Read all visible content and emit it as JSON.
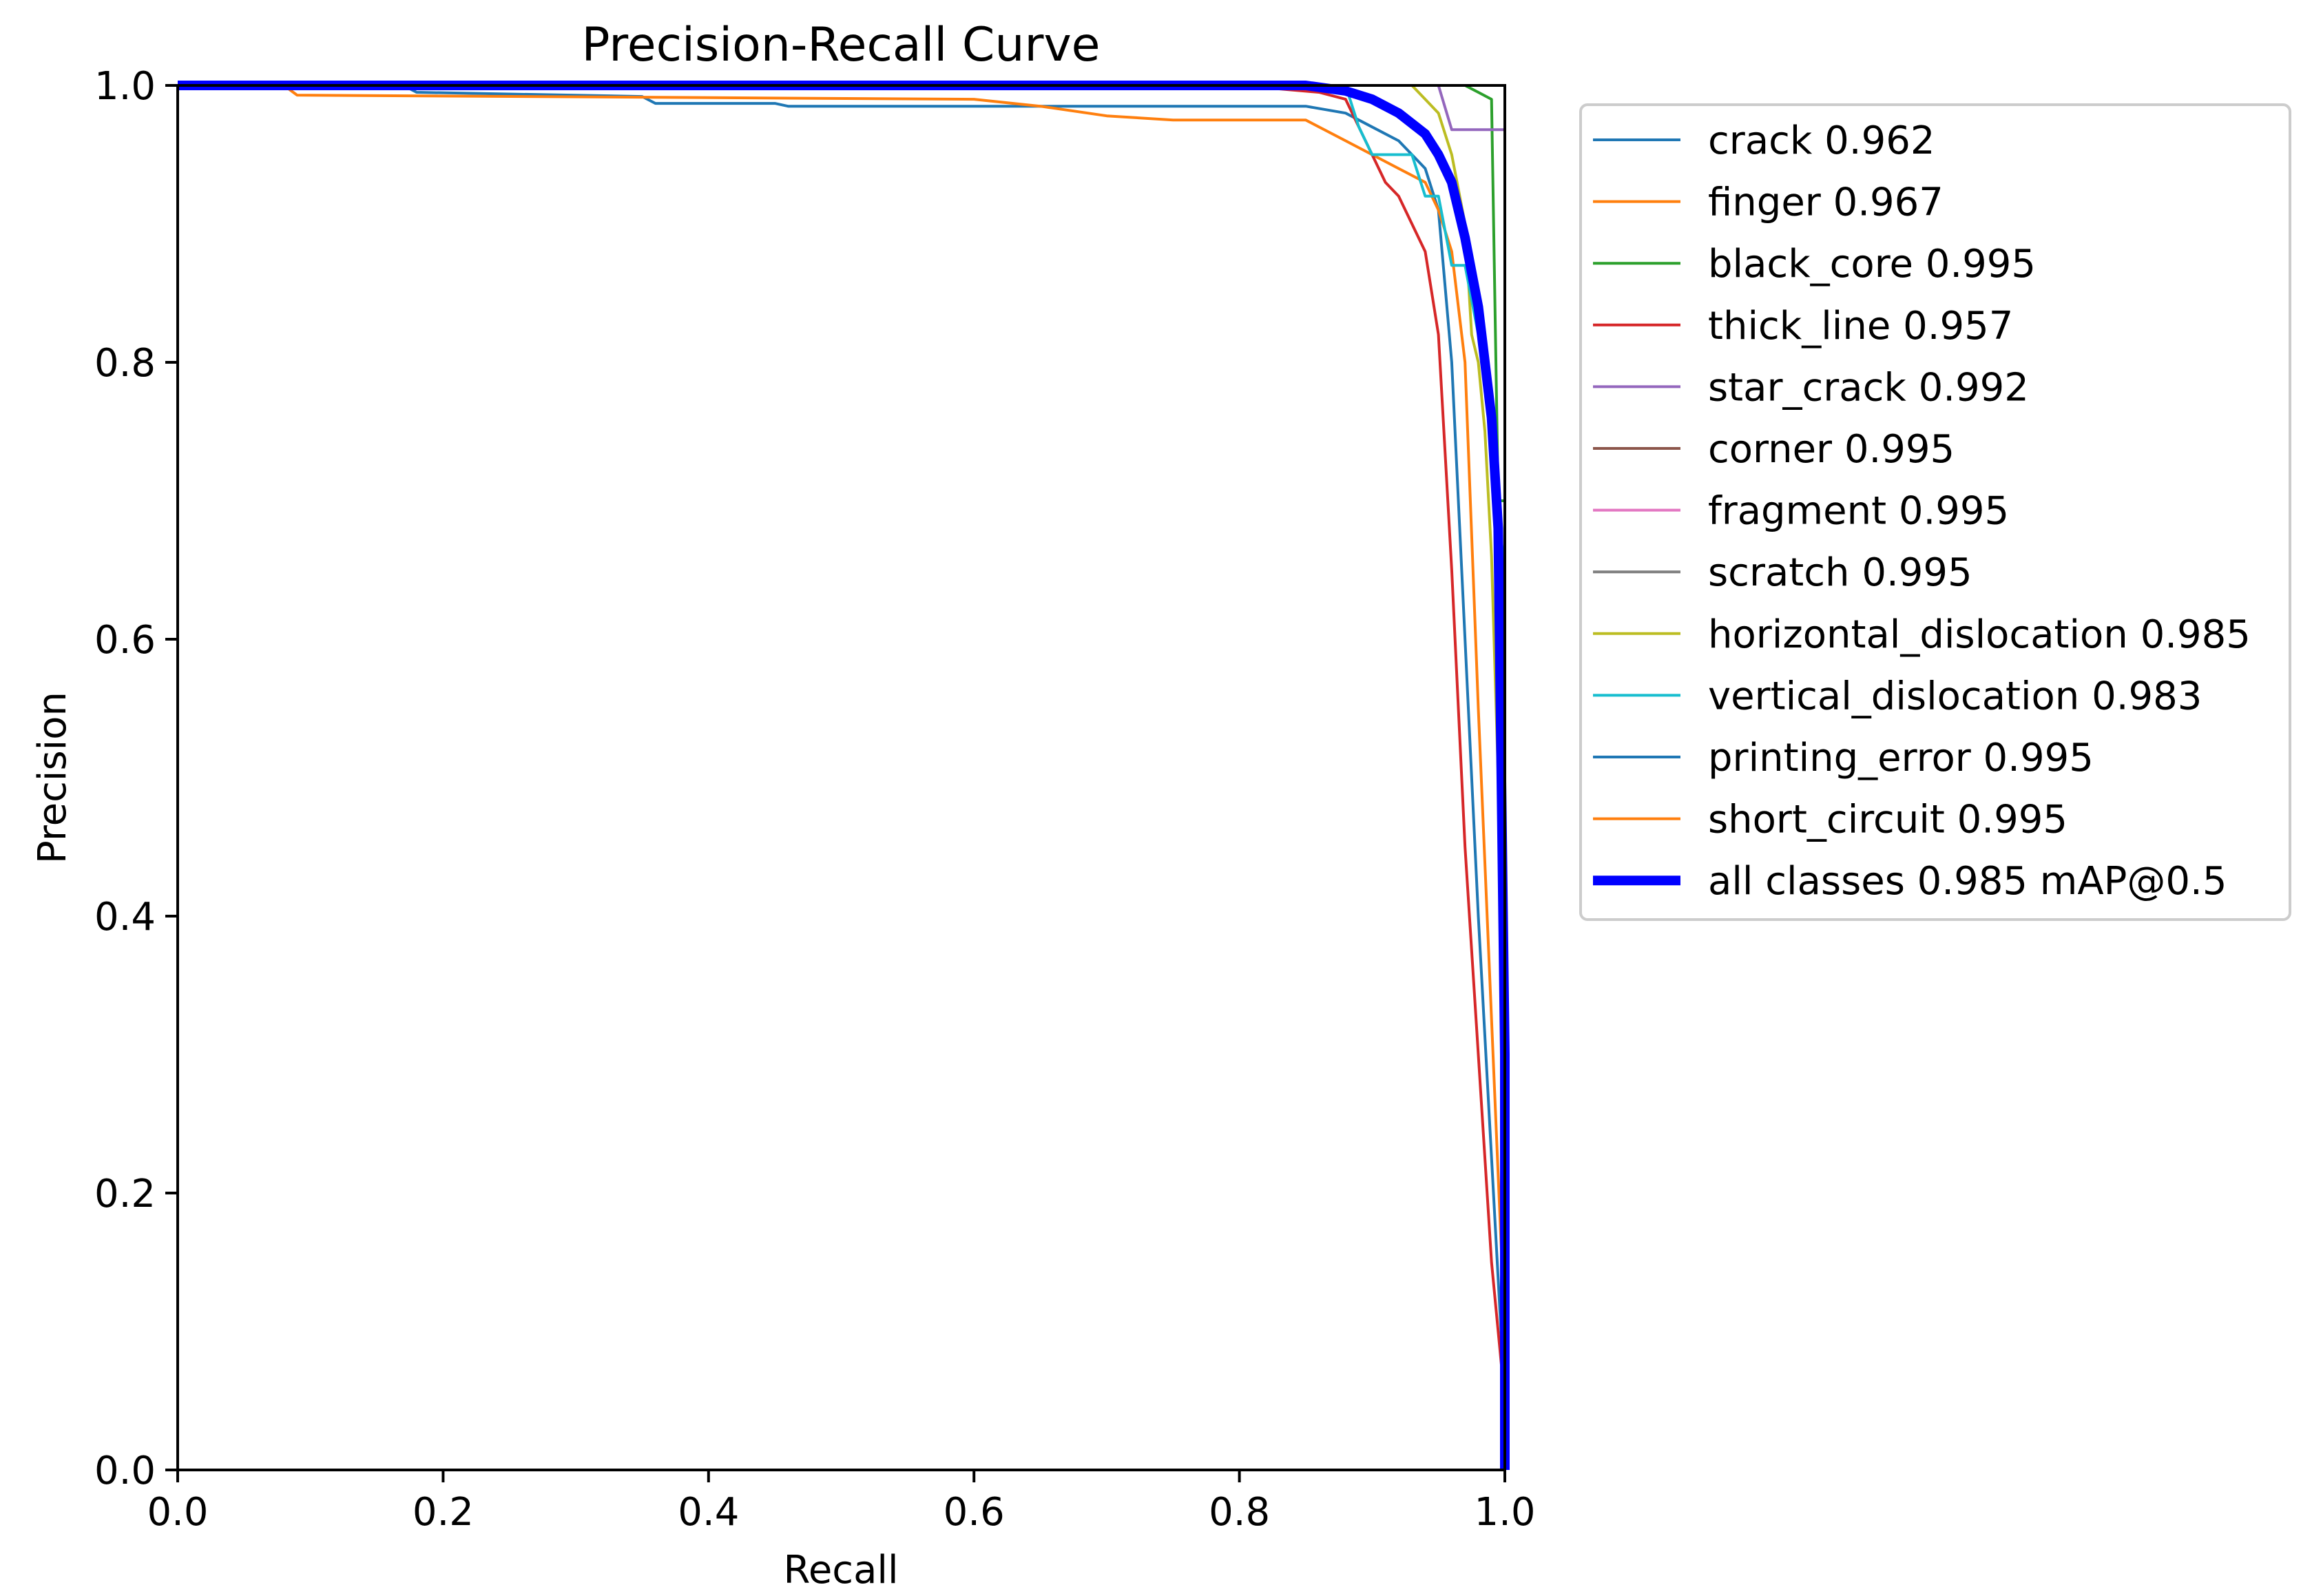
{
  "chart_data": {
    "type": "line",
    "title": "Precision-Recall Curve",
    "xlabel": "Recall",
    "ylabel": "Precision",
    "xlim": [
      0,
      1
    ],
    "ylim": [
      0,
      1
    ],
    "xticks": [
      0.0,
      0.2,
      0.4,
      0.6,
      0.8,
      1.0
    ],
    "yticks": [
      0.0,
      0.2,
      0.4,
      0.6,
      0.8,
      1.0
    ],
    "xtick_labels": [
      "0.0",
      "0.2",
      "0.4",
      "0.6",
      "0.8",
      "1.0"
    ],
    "ytick_labels": [
      "0.0",
      "0.2",
      "0.4",
      "0.6",
      "0.8",
      "1.0"
    ],
    "grid": false,
    "legend_position": "outside-right-top",
    "series": [
      {
        "name": "crack 0.962",
        "color": "#1f77b4",
        "x": [
          0,
          0.17,
          0.18,
          0.35,
          0.36,
          0.45,
          0.46,
          0.85,
          0.88,
          0.9,
          0.92,
          0.94,
          0.95,
          0.96,
          0.97,
          0.98,
          1.0,
          1.0
        ],
        "y": [
          1.0,
          1.0,
          0.995,
          0.992,
          0.987,
          0.987,
          0.985,
          0.985,
          0.98,
          0.97,
          0.96,
          0.94,
          0.91,
          0.8,
          0.6,
          0.4,
          0.05,
          0.0
        ]
      },
      {
        "name": "finger 0.967",
        "color": "#ff7f0e",
        "x": [
          0,
          0.08,
          0.09,
          0.6,
          0.65,
          0.7,
          0.75,
          0.85,
          0.88,
          0.9,
          0.92,
          0.94,
          0.95,
          0.96,
          0.97,
          0.98,
          1.0,
          1.0
        ],
        "y": [
          1.0,
          1.0,
          0.993,
          0.99,
          0.985,
          0.978,
          0.975,
          0.975,
          0.96,
          0.95,
          0.94,
          0.93,
          0.91,
          0.88,
          0.8,
          0.55,
          0.1,
          0.0
        ]
      },
      {
        "name": "black_core 0.995",
        "color": "#2ca02c",
        "x": [
          0,
          0.97,
          0.98,
          0.99,
          0.995,
          1.0,
          1.0
        ],
        "y": [
          1.0,
          1.0,
          0.995,
          0.99,
          0.7,
          0.7,
          0.0
        ]
      },
      {
        "name": "thick_line 0.957",
        "color": "#d62728",
        "x": [
          0,
          0.8,
          0.86,
          0.88,
          0.89,
          0.9,
          0.91,
          0.92,
          0.93,
          0.94,
          0.95,
          0.96,
          0.97,
          0.98,
          0.99,
          1.0,
          1.0
        ],
        "y": [
          1.0,
          1.0,
          0.995,
          0.99,
          0.97,
          0.95,
          0.93,
          0.92,
          0.9,
          0.88,
          0.82,
          0.65,
          0.45,
          0.3,
          0.15,
          0.05,
          0.0
        ]
      },
      {
        "name": "star_crack 0.992",
        "color": "#9467bd",
        "x": [
          0,
          0.95,
          0.96,
          0.99,
          1.0,
          1.0
        ],
        "y": [
          1.0,
          1.0,
          0.968,
          0.968,
          0.968,
          0.0
        ]
      },
      {
        "name": "corner 0.995",
        "color": "#8c564b",
        "x": [
          0,
          0.999,
          1.0,
          1.0
        ],
        "y": [
          1.0,
          1.0,
          1.0,
          0.0
        ]
      },
      {
        "name": "fragment 0.995",
        "color": "#e377c2",
        "x": [
          0,
          0.999,
          1.0,
          1.0
        ],
        "y": [
          1.0,
          1.0,
          1.0,
          0.0
        ]
      },
      {
        "name": "scratch 0.995",
        "color": "#7f7f7f",
        "x": [
          0,
          0.999,
          1.0,
          1.0
        ],
        "y": [
          1.0,
          1.0,
          1.0,
          0.0
        ]
      },
      {
        "name": "horizontal_dislocation 0.985",
        "color": "#bcbd22",
        "x": [
          0,
          0.93,
          0.94,
          0.95,
          0.96,
          0.97,
          0.975,
          0.98,
          0.985,
          0.99,
          0.995,
          1.0,
          1.0
        ],
        "y": [
          1.0,
          1.0,
          0.99,
          0.98,
          0.95,
          0.9,
          0.82,
          0.8,
          0.75,
          0.66,
          0.5,
          0.2,
          0.0
        ]
      },
      {
        "name": "vertical_dislocation 0.983",
        "color": "#17becf",
        "x": [
          0,
          0.88,
          0.89,
          0.9,
          0.93,
          0.94,
          0.95,
          0.96,
          0.97,
          0.98,
          0.985,
          0.99,
          1.0,
          1.0
        ],
        "y": [
          1.0,
          1.0,
          0.97,
          0.95,
          0.95,
          0.92,
          0.92,
          0.87,
          0.87,
          0.82,
          0.8,
          0.73,
          0.65,
          0.0
        ]
      },
      {
        "name": "printing_error 0.995",
        "color": "#1f77b4",
        "x": [
          0,
          0.99,
          1.0,
          1.0
        ],
        "y": [
          1.0,
          1.0,
          1.0,
          0.0
        ]
      },
      {
        "name": "short_circuit 0.995",
        "color": "#ff7f0e",
        "x": [
          0,
          0.99,
          1.0,
          1.0
        ],
        "y": [
          1.0,
          1.0,
          1.0,
          0.0
        ]
      },
      {
        "name": "all classes 0.985 mAP@0.5",
        "color": "#0000ff",
        "bold": true,
        "x": [
          0,
          0.85,
          0.88,
          0.9,
          0.92,
          0.94,
          0.95,
          0.96,
          0.97,
          0.98,
          0.99,
          0.995,
          1.0,
          1.0
        ],
        "y": [
          1.0,
          1.0,
          0.996,
          0.99,
          0.98,
          0.965,
          0.95,
          0.93,
          0.89,
          0.84,
          0.76,
          0.68,
          0.3,
          0.0
        ]
      }
    ]
  }
}
